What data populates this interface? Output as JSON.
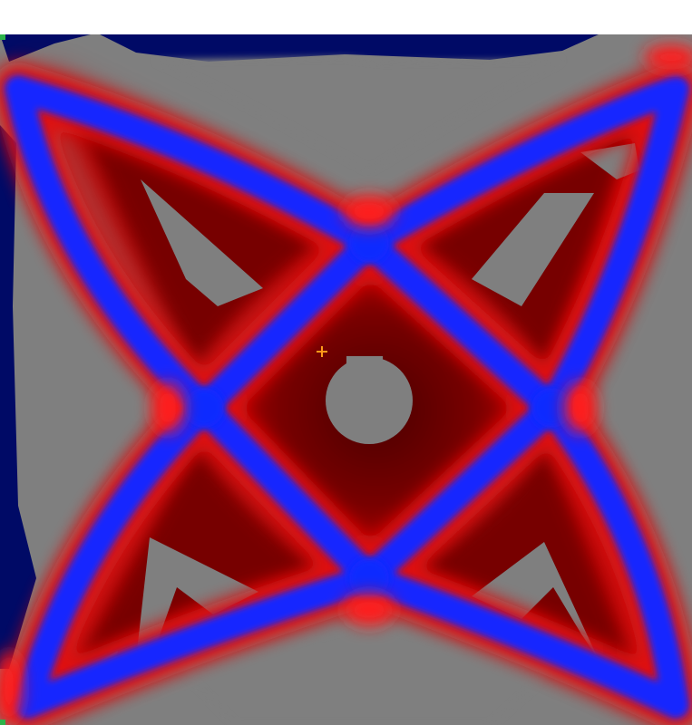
{
  "view": {
    "colors": {
      "background": "#ffffff",
      "void": "#7f7f7f",
      "blue": "#1020ff",
      "dark_blue": "#000a66",
      "red": "#ee1111",
      "dark_red": "#5a0000",
      "green_marker": "#2db34a",
      "cursor": "#ff9a1a"
    },
    "cursor_icon": "crosshair-icon"
  }
}
